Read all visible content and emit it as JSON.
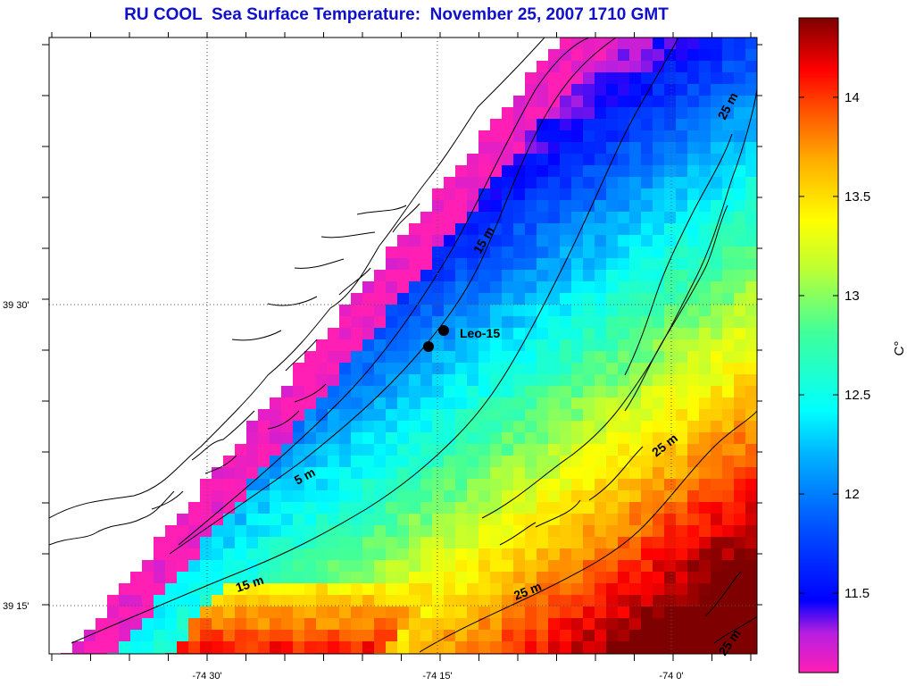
{
  "title": "RU COOL  Sea Surface Temperature:  November 25, 2007 1710 GMT",
  "axes": {
    "x_labels": [
      "-74 30'",
      "-74 15'",
      "-74 0'"
    ],
    "y_labels": [
      "39 30'",
      "39 15'"
    ]
  },
  "contour_labels": [
    "15 m",
    "5 m",
    "15 m",
    "25 m",
    "25 m",
    "25 m",
    "25 m"
  ],
  "station": {
    "name": "Leo-15"
  },
  "colorbar": {
    "unit": "C°",
    "ticks": [
      "14",
      "13.5",
      "13",
      "12.5",
      "12",
      "11.5"
    ],
    "range": [
      11.1,
      14.4
    ]
  },
  "colors": {
    "land": "#ffffff",
    "title": "#1010c8",
    "coldest": "#ff1fb5",
    "warmest": "#7f0000"
  }
}
